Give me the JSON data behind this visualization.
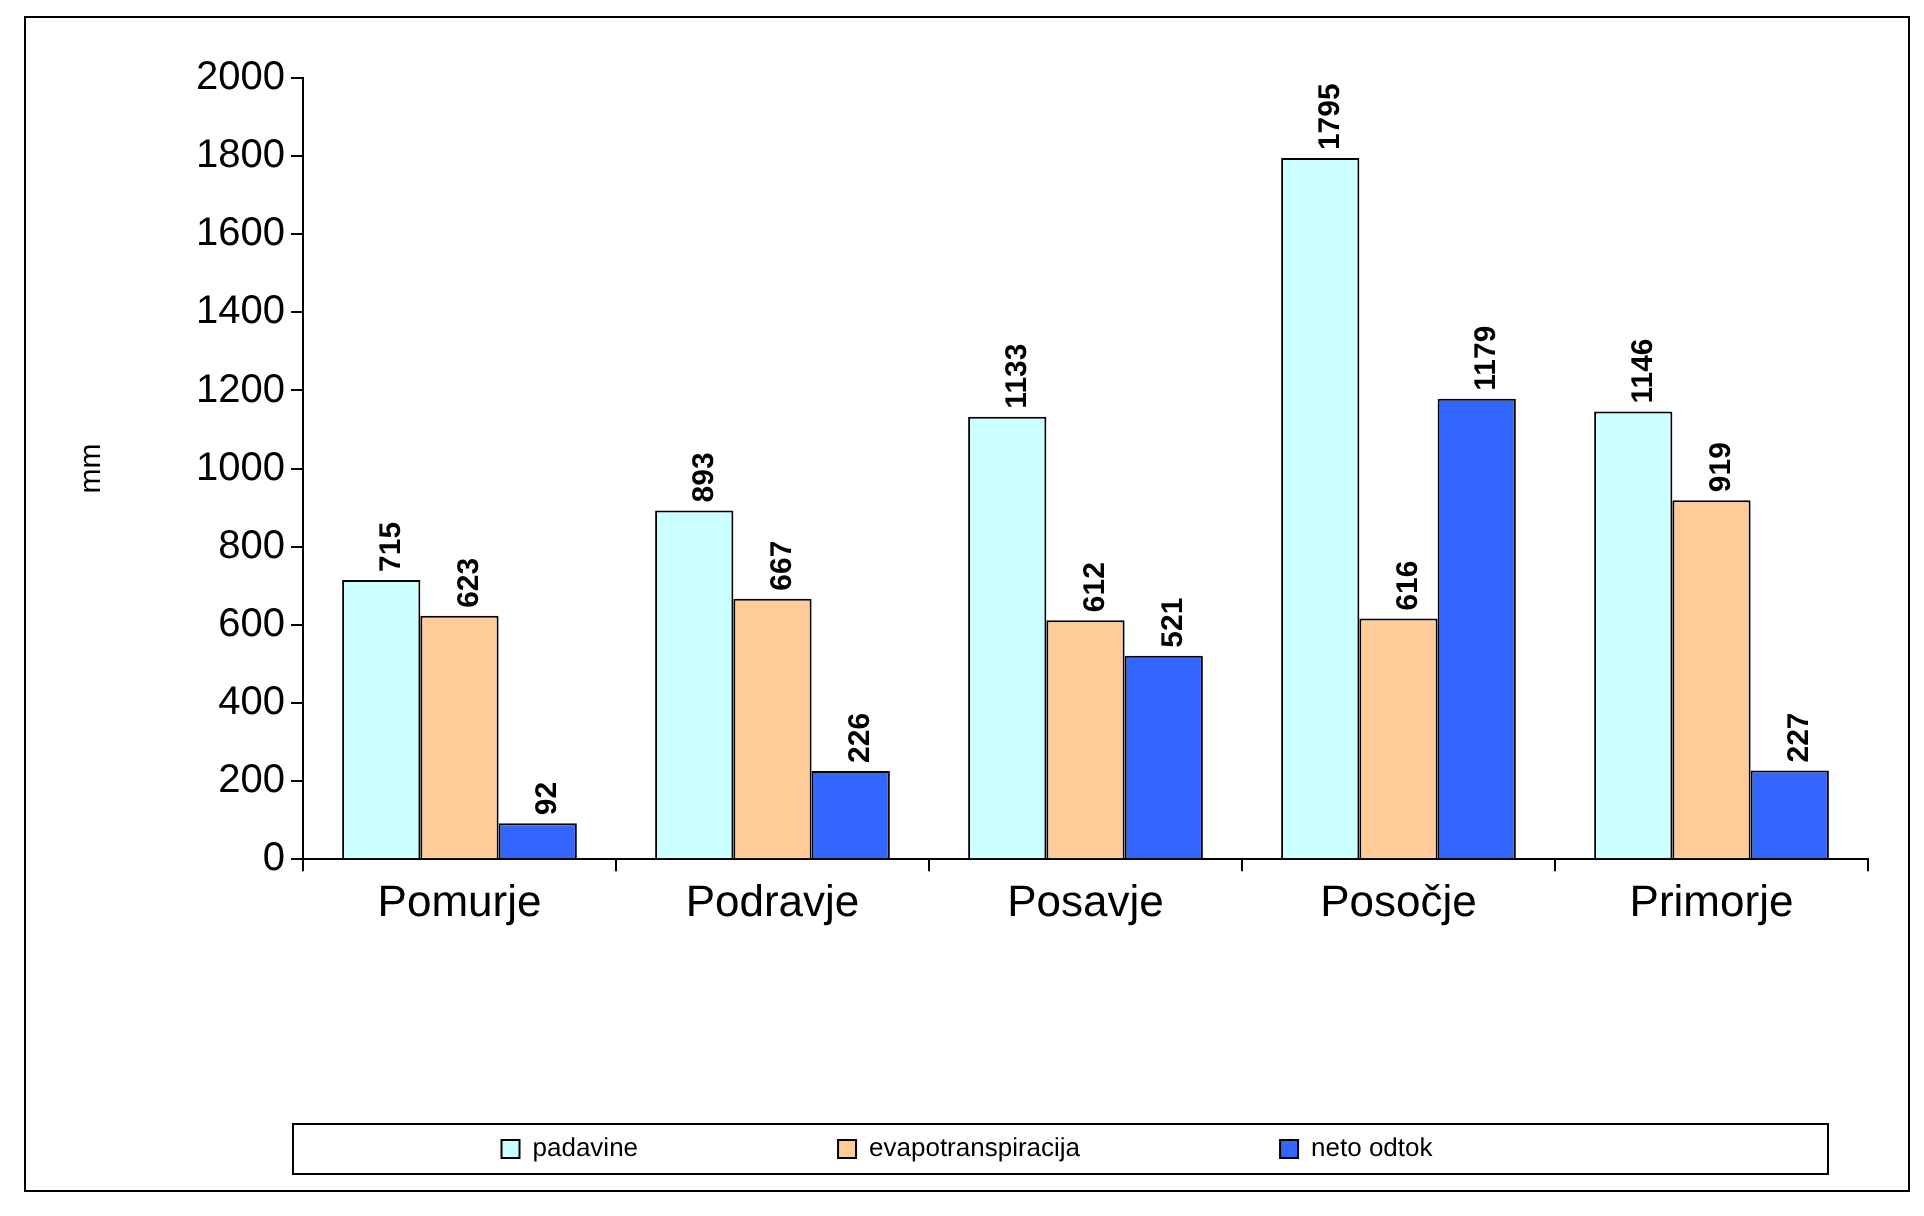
{
  "chart_data": {
    "type": "bar",
    "ylabel": "mm",
    "categories": [
      "Pomurje",
      "Podravje",
      "Posavje",
      "Posočje",
      "Primorje"
    ],
    "series": [
      {
        "name": "padavine",
        "color": "#ccffff",
        "values": [
          715,
          893,
          1133,
          1795,
          1146
        ]
      },
      {
        "name": "evapotranspiracija",
        "color": "#ffcc99",
        "values": [
          623,
          667,
          612,
          616,
          919
        ]
      },
      {
        "name": "neto odtok",
        "color": "#3366ff",
        "values": [
          92,
          226,
          521,
          1179,
          227
        ]
      }
    ],
    "ylim": [
      0,
      2000
    ],
    "yticks": [
      0,
      200,
      400,
      600,
      800,
      1000,
      1200,
      1400,
      1600,
      1800,
      2000
    ],
    "grid": false,
    "legend": "bottom",
    "data_labels": true
  }
}
